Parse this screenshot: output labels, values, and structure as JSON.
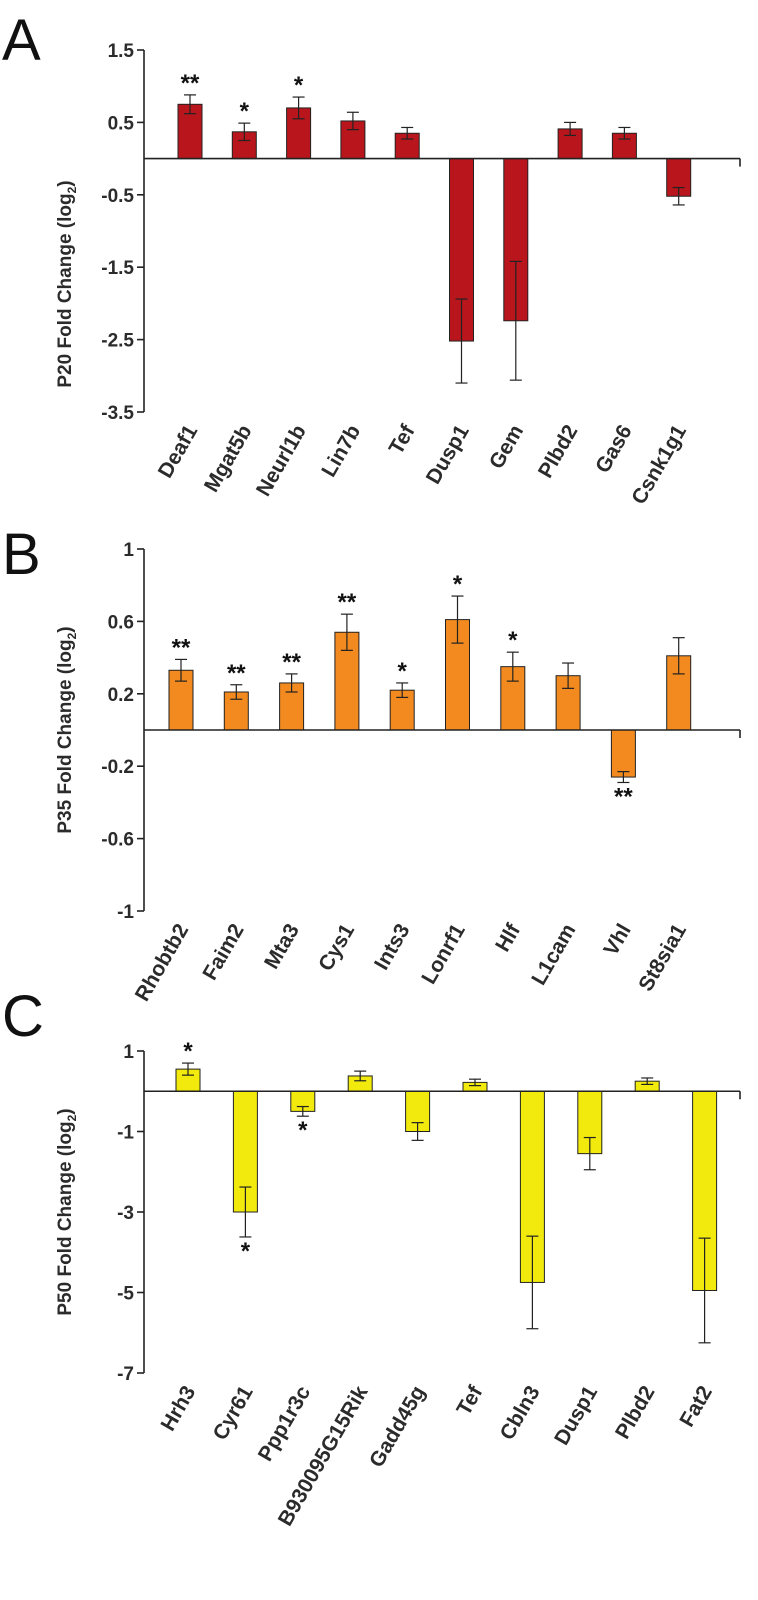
{
  "chart_data": [
    {
      "type": "bar",
      "panel": "A",
      "ylabel": "P20 Fold Change (log",
      "ylabel_sub": "2",
      "ylabel_close": ")",
      "ylim": [
        -3.5,
        1.5
      ],
      "yticks": [
        1.5,
        0.5,
        -0.5,
        -1.5,
        -2.5,
        -3.5
      ],
      "ytick_labels": [
        "1.5",
        "0.5",
        "-0.5",
        "-1.5",
        "-2.5",
        "-3.5"
      ],
      "color": "#b8161c",
      "categories": [
        "Deaf1",
        "Mgat5b",
        "Neurl1b",
        "Lin7b",
        "Tef",
        "Dusp1",
        "Gem",
        "Plbd2",
        "Gas6",
        "Csnk1g1"
      ],
      "values": [
        0.75,
        0.37,
        0.7,
        0.52,
        0.35,
        -2.52,
        -2.24,
        0.41,
        0.35,
        -0.52
      ],
      "errors": [
        0.13,
        0.12,
        0.15,
        0.12,
        0.08,
        0.58,
        0.82,
        0.09,
        0.08,
        0.12
      ],
      "significance": [
        "**",
        "*",
        "*",
        "",
        "",
        "",
        "",
        "",
        "",
        ""
      ]
    },
    {
      "type": "bar",
      "panel": "B",
      "ylabel": "P35 Fold Change (log",
      "ylabel_sub": "2",
      "ylabel_close": ")",
      "ylim": [
        -1,
        1
      ],
      "yticks": [
        1,
        0.6,
        0.2,
        -0.2,
        -0.6,
        -1
      ],
      "ytick_labels": [
        "1",
        "0.6",
        "0.2",
        "-0.2",
        "-0.6",
        "-1"
      ],
      "color": "#f28a1f",
      "categories": [
        "Rhobtb2",
        "Faim2",
        "Mta3",
        "Cys1",
        "Ints3",
        "Lonrf1",
        "Hlf",
        "L1cam",
        "Vhl",
        "St8sia1"
      ],
      "values": [
        0.33,
        0.21,
        0.26,
        0.54,
        0.22,
        0.61,
        0.35,
        0.3,
        -0.26,
        0.41
      ],
      "errors": [
        0.06,
        0.04,
        0.05,
        0.1,
        0.04,
        0.13,
        0.08,
        0.07,
        0.03,
        0.1
      ],
      "significance": [
        "**",
        "**",
        "**",
        "**",
        "*",
        "*",
        "*",
        "",
        "**",
        ""
      ]
    },
    {
      "type": "bar",
      "panel": "C",
      "ylabel": "P50 Fold Change (log",
      "ylabel_sub": "2",
      "ylabel_close": ")",
      "ylim": [
        -7,
        1
      ],
      "yticks": [
        1,
        -1,
        -3,
        -5,
        -7
      ],
      "ytick_labels": [
        "1",
        "-1",
        "-3",
        "-5",
        "-7"
      ],
      "color": "#f2ea0c",
      "categories": [
        "Hrh3",
        "Cyr61",
        "Ppp1r3c",
        "B930095G15Rik",
        "Gadd45g",
        "Tef",
        "Cbln3",
        "Dusp1",
        "Plbd2",
        "Fat2"
      ],
      "values": [
        0.55,
        -3.0,
        -0.5,
        0.38,
        -1.0,
        0.22,
        -4.75,
        -1.55,
        0.25,
        -4.95
      ],
      "errors": [
        0.15,
        0.62,
        0.12,
        0.12,
        0.22,
        0.08,
        1.15,
        0.4,
        0.08,
        1.3
      ],
      "significance": [
        "*",
        "*",
        "*",
        "",
        "",
        "",
        "",
        "",
        "",
        ""
      ]
    }
  ]
}
